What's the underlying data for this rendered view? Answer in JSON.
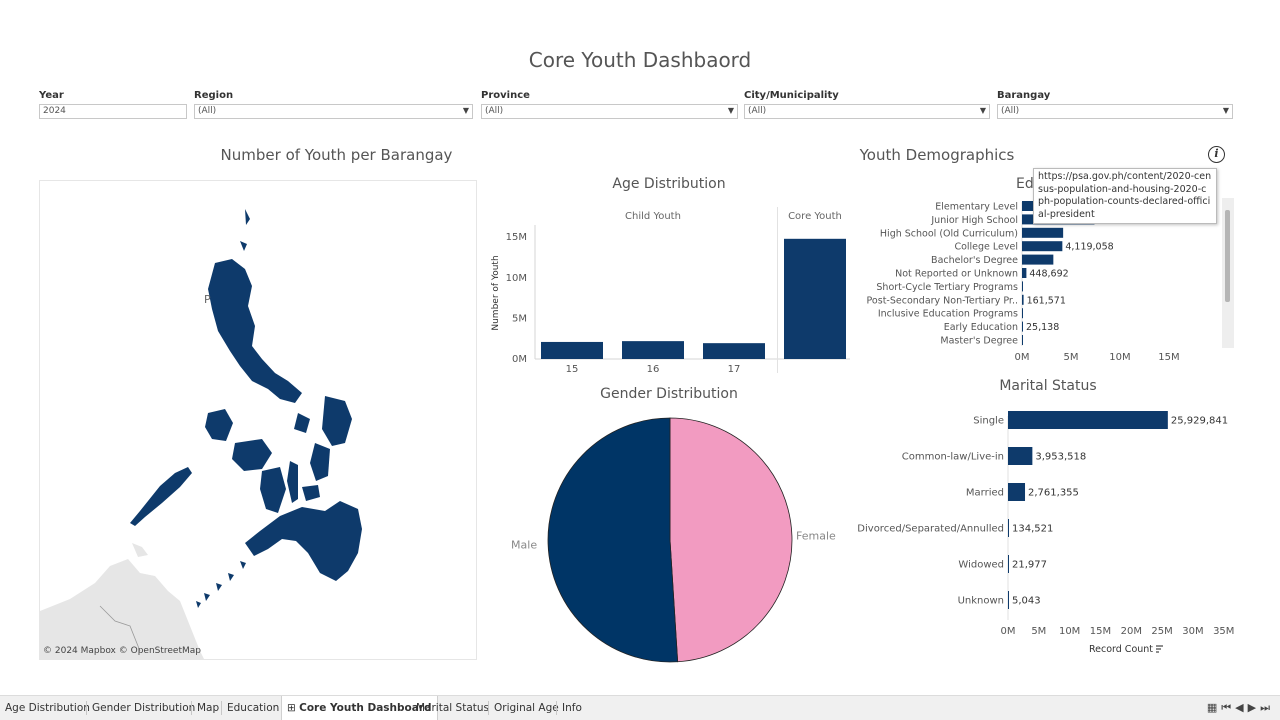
{
  "dashboard": {
    "title": "Core Youth Dashbaord"
  },
  "filters": [
    {
      "label": "Year",
      "value": "2024",
      "dropdown": false
    },
    {
      "label": "Region",
      "value": "(All)",
      "dropdown": true
    },
    {
      "label": "Province",
      "value": "(All)",
      "dropdown": true
    },
    {
      "label": "City/Municipality",
      "value": "(All)",
      "dropdown": true
    },
    {
      "label": "Barangay",
      "value": "(All)",
      "dropdown": true
    }
  ],
  "map": {
    "title": "Number of Youth per Barangay",
    "attribution": "© 2024 Mapbox © OpenStreetMap",
    "colors": {
      "youth": "#0e3a6b",
      "land": "#e6e6e6"
    }
  },
  "demographics": {
    "title": "Youth Demographics",
    "info_icon": "info-icon",
    "tooltip": "https://psa.gov.ph/content/2020-census-population-and-housing-2020-cph-population-counts-declared-official-president"
  },
  "chart_data": [
    {
      "id": "age",
      "type": "bar",
      "title": "Age Distribution",
      "ylabel": "Number of Youth",
      "groups": [
        {
          "name": "Child Youth",
          "categories": [
            "15",
            "16",
            "17"
          ]
        },
        {
          "name": "Core Youth",
          "categories": [
            ""
          ]
        }
      ],
      "categories": [
        "15",
        "16",
        "17",
        ""
      ],
      "values": [
        2100000,
        2200000,
        1950000,
        14800000
      ],
      "yticks": [
        0,
        5000000,
        10000000,
        15000000
      ],
      "ytick_labels": [
        "0M",
        "5M",
        "10M",
        "15M"
      ],
      "ylim": [
        0,
        16500000
      ],
      "color": "#0e3a6b"
    },
    {
      "id": "gender",
      "type": "pie",
      "title": "Gender Distribution",
      "labels": [
        "Female",
        "Male"
      ],
      "values": [
        49.0,
        51.0
      ],
      "colors": [
        "#f29bc1",
        "#003566"
      ]
    },
    {
      "id": "education",
      "type": "bar",
      "orientation": "horizontal",
      "title": "Ed",
      "categories": [
        "Elementary Level",
        "Junior High School",
        "High School (Old Curriculum)",
        "College Level",
        "Bachelor's Degree",
        "Not Reported or Unknown",
        "Short-Cycle Tertiary Programs",
        "Post-Secondary Non-Tertiary Pr..",
        "Inclusive Education Programs",
        "Early Education",
        "Master's Degree"
      ],
      "values": [
        1200000,
        7400000,
        4200000,
        4119058,
        3200000,
        448692,
        90000,
        161571,
        20000,
        25138,
        8000
      ],
      "data_labels": [
        "",
        "",
        "",
        "4,119,058",
        "",
        "448,692",
        "",
        "161,571",
        "",
        "25,138",
        ""
      ],
      "xticks": [
        0,
        5000000,
        10000000,
        15000000
      ],
      "xtick_labels": [
        "0M",
        "5M",
        "10M",
        "15M"
      ],
      "xlim": [
        0,
        19500000
      ],
      "color": "#0e3a6b"
    },
    {
      "id": "marital",
      "type": "bar",
      "orientation": "horizontal",
      "title": "Marital Status",
      "categories": [
        "Single",
        "Common-law/Live-in",
        "Married",
        "Divorced/Separated/Annulled",
        "Widowed",
        "Unknown"
      ],
      "values": [
        25929841,
        3953518,
        2761355,
        134521,
        21977,
        5043
      ],
      "data_labels": [
        "25,929,841",
        "3,953,518",
        "2,761,355",
        "134,521",
        "21,977",
        "5,043"
      ],
      "xticks": [
        0,
        5000000,
        10000000,
        15000000,
        20000000,
        25000000,
        30000000,
        35000000
      ],
      "xtick_labels": [
        "0M",
        "5M",
        "10M",
        "15M",
        "20M",
        "25M",
        "30M",
        "35M"
      ],
      "xlim": [
        0,
        36500000
      ],
      "xlabel": "Record Count",
      "sort_icon": "sort-descending-icon",
      "color": "#0e3a6b"
    }
  ],
  "tabs": [
    {
      "label": "Age Distribution",
      "active": false
    },
    {
      "label": "Gender Distribution",
      "active": false
    },
    {
      "label": "Map",
      "active": false
    },
    {
      "label": "Education",
      "active": false
    },
    {
      "label": "Core Youth Dashboard",
      "active": true,
      "icon": "dashboard-grid-icon"
    },
    {
      "label": "Marital Status",
      "active": false
    },
    {
      "label": "Original Age",
      "active": false
    },
    {
      "label": "Info",
      "active": false
    }
  ],
  "navigation_icons": [
    "grid-icon",
    "first-sheet-icon",
    "previous-sheet-icon",
    "next-sheet-icon",
    "last-sheet-icon"
  ]
}
